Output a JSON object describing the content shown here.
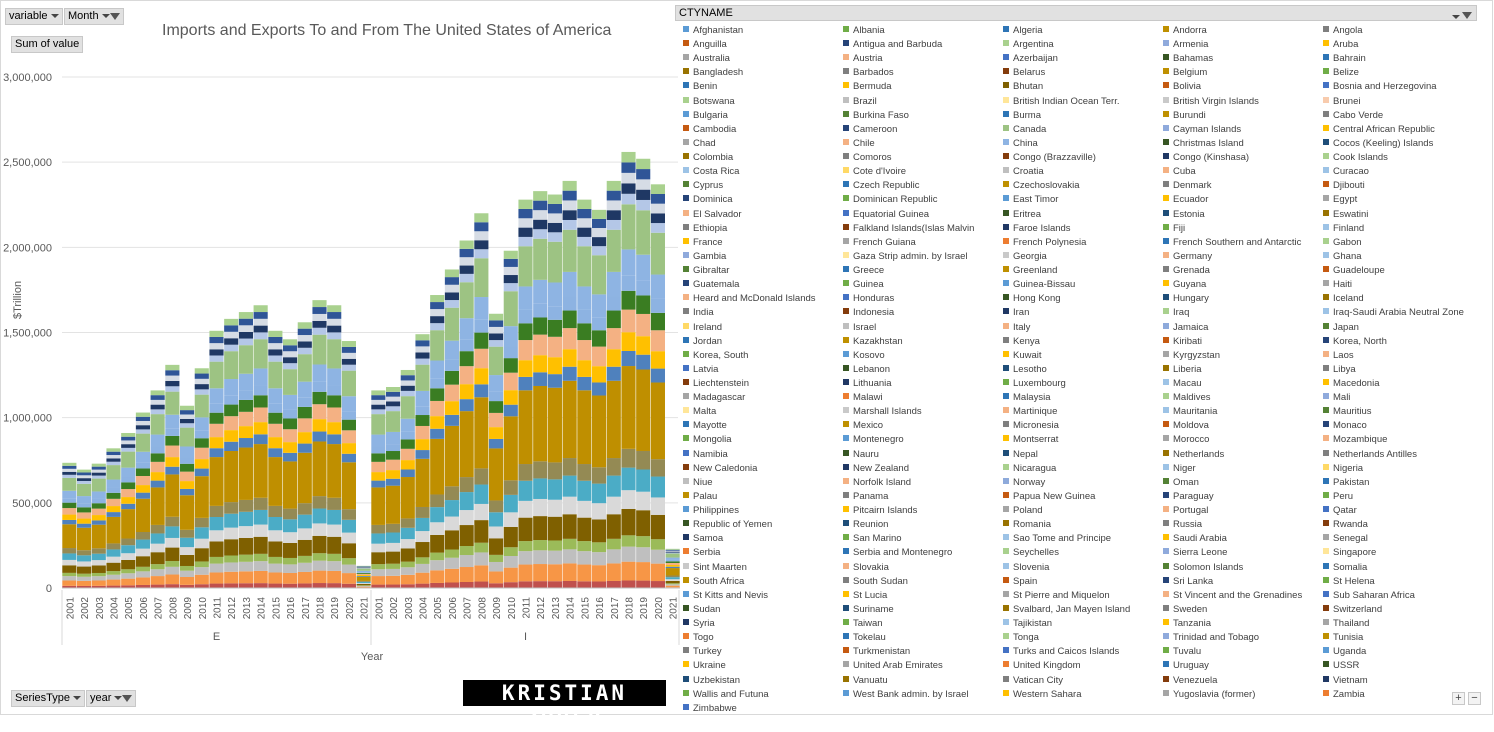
{
  "filters": {
    "variable_label": "variable",
    "month_label": "Month",
    "values_label": "Sum of value",
    "seriestype_label": "SeriesType",
    "year_label": "year"
  },
  "logo_text": "KRISTIAN ZUBER",
  "chart_data": {
    "type": "stacked-column",
    "title": "Imports and Exports To and From The United States of America",
    "ylabel": "$Trillion",
    "xlabel": "Year",
    "ylim": [
      0,
      3000000
    ],
    "yticks": [
      0,
      500000,
      1000000,
      1500000,
      2000000,
      2500000,
      3000000
    ],
    "ytick_labels": [
      "0",
      "500,000",
      "1,000,000",
      "1,500,000",
      "2,000,000",
      "2,500,000",
      "3,000,000"
    ],
    "legend_title": "CTYNAME",
    "groups": [
      {
        "name": "E",
        "categories": [
          "2001",
          "2002",
          "2003",
          "2004",
          "2005",
          "2006",
          "2007",
          "2008",
          "2009",
          "2010",
          "2011",
          "2012",
          "2013",
          "2014",
          "2015",
          "2016",
          "2017",
          "2018",
          "2019",
          "2020",
          "2021"
        ],
        "totals": [
          735000,
          695000,
          730000,
          820000,
          910000,
          1030000,
          1160000,
          1310000,
          1070000,
          1290000,
          1510000,
          1580000,
          1620000,
          1660000,
          1510000,
          1460000,
          1560000,
          1690000,
          1660000,
          1450000,
          130000
        ]
      },
      {
        "name": "I",
        "categories": [
          "2001",
          "2002",
          "2003",
          "2004",
          "2005",
          "2006",
          "2007",
          "2008",
          "2009",
          "2010",
          "2011",
          "2012",
          "2013",
          "2014",
          "2015",
          "2016",
          "2017",
          "2018",
          "2019",
          "2020",
          "2021"
        ],
        "totals": [
          1160000,
          1180000,
          1280000,
          1490000,
          1720000,
          1870000,
          2040000,
          2200000,
          1610000,
          1980000,
          2280000,
          2330000,
          2310000,
          2390000,
          2280000,
          2220000,
          2390000,
          2560000,
          2520000,
          2370000,
          230000
        ]
      }
    ],
    "segment_shares": [
      0.02,
      0.05,
      0.04,
      0.03,
      0.07,
      0.05,
      0.06,
      0.05,
      0.22,
      0.04,
      0.05,
      0.06,
      0.05,
      0.04,
      0.07,
      0.12
    ],
    "segment_colors": [
      "#c0504d",
      "#f79646",
      "#bfbfbf",
      "#9bbb59",
      "#7f6000",
      "#d9d9d9",
      "#4bacc6",
      "#948a54",
      "#bf8f00",
      "#4f81bd",
      "#ffc000",
      "#f4b183",
      "#3a7d22",
      "#8db3e2",
      "#8eb4e3",
      "#9dc383"
    ],
    "top_band_colors": [
      "#b4c7e7",
      "#1f3864",
      "#d6dce5",
      "#2f5597",
      "#a9d18e"
    ]
  },
  "legend": [
    {
      "name": "Afghanistan",
      "color": "#5b9bd5"
    },
    {
      "name": "Albania",
      "color": "#70ad47"
    },
    {
      "name": "Algeria",
      "color": "#2e75b6"
    },
    {
      "name": "Andorra",
      "color": "#bf9000"
    },
    {
      "name": "Angola",
      "color": "#7f7f7f"
    },
    {
      "name": "Anguilla",
      "color": "#c55a11"
    },
    {
      "name": "Antigua and Barbuda",
      "color": "#264478"
    },
    {
      "name": "Argentina",
      "color": "#a9d18e"
    },
    {
      "name": "Armenia",
      "color": "#8faadc"
    },
    {
      "name": "Aruba",
      "color": "#ffc000"
    },
    {
      "name": "Australia",
      "color": "#a5a5a5"
    },
    {
      "name": "Austria",
      "color": "#f4b183"
    },
    {
      "name": "Azerbaijan",
      "color": "#4472c4"
    },
    {
      "name": "Bahamas",
      "color": "#375623"
    },
    {
      "name": "Bahrain",
      "color": "#2e75b6"
    },
    {
      "name": "Bangladesh",
      "color": "#997300"
    },
    {
      "name": "Barbados",
      "color": "#7f7f7f"
    },
    {
      "name": "Belarus",
      "color": "#843c0c"
    },
    {
      "name": "Belgium",
      "color": "#bf9000"
    },
    {
      "name": "Belize",
      "color": "#70ad47"
    },
    {
      "name": "Benin",
      "color": "#2e75b6"
    },
    {
      "name": "Bermuda",
      "color": "#ffc000"
    },
    {
      "name": "Bhutan",
      "color": "#7f6000"
    },
    {
      "name": "Bolivia",
      "color": "#c55a11"
    },
    {
      "name": "Bosnia and Herzegovina",
      "color": "#4472c4"
    },
    {
      "name": "Botswana",
      "color": "#a9d18e"
    },
    {
      "name": "Brazil",
      "color": "#bfbfbf"
    },
    {
      "name": "British Indian Ocean Terr.",
      "color": "#ffe699"
    },
    {
      "name": "British Virgin Islands",
      "color": "#c9c9c9"
    },
    {
      "name": "Brunei",
      "color": "#f8cbad"
    },
    {
      "name": "Bulgaria",
      "color": "#5b9bd5"
    },
    {
      "name": "Burkina Faso",
      "color": "#548235"
    },
    {
      "name": "Burma",
      "color": "#2e75b6"
    },
    {
      "name": "Burundi",
      "color": "#bf9000"
    },
    {
      "name": "Cabo Verde",
      "color": "#7f7f7f"
    },
    {
      "name": "Cambodia",
      "color": "#c55a11"
    },
    {
      "name": "Cameroon",
      "color": "#264478"
    },
    {
      "name": "Canada",
      "color": "#9dc383"
    },
    {
      "name": "Cayman Islands",
      "color": "#8faadc"
    },
    {
      "name": "Central African Republic",
      "color": "#ffc000"
    },
    {
      "name": "Chad",
      "color": "#a5a5a5"
    },
    {
      "name": "Chile",
      "color": "#f4b183"
    },
    {
      "name": "China",
      "color": "#8eb4e3"
    },
    {
      "name": "Christmas Island",
      "color": "#375623"
    },
    {
      "name": "Cocos (Keeling) Islands",
      "color": "#1f4e79"
    },
    {
      "name": "Colombia",
      "color": "#997300"
    },
    {
      "name": "Comoros",
      "color": "#7f7f7f"
    },
    {
      "name": "Congo (Brazzaville)",
      "color": "#843c0c"
    },
    {
      "name": "Congo (Kinshasa)",
      "color": "#203864"
    },
    {
      "name": "Cook Islands",
      "color": "#a9d18e"
    },
    {
      "name": "Costa Rica",
      "color": "#9dc3e6"
    },
    {
      "name": "Cote d'Ivoire",
      "color": "#ffd966"
    },
    {
      "name": "Croatia",
      "color": "#bfbfbf"
    },
    {
      "name": "Cuba",
      "color": "#f4b183"
    },
    {
      "name": "Curacao",
      "color": "#9dc3e6"
    },
    {
      "name": "Cyprus",
      "color": "#548235"
    },
    {
      "name": "Czech Republic",
      "color": "#2e75b6"
    },
    {
      "name": "Czechoslovakia",
      "color": "#bf9000"
    },
    {
      "name": "Denmark",
      "color": "#7f7f7f"
    },
    {
      "name": "Djibouti",
      "color": "#c55a11"
    },
    {
      "name": "Dominica",
      "color": "#264478"
    },
    {
      "name": "Dominican Republic",
      "color": "#70ad47"
    },
    {
      "name": "East Timor",
      "color": "#5b9bd5"
    },
    {
      "name": "Ecuador",
      "color": "#ffc000"
    },
    {
      "name": "Egypt",
      "color": "#a5a5a5"
    },
    {
      "name": "El Salvador",
      "color": "#f4b183"
    },
    {
      "name": "Equatorial Guinea",
      "color": "#4472c4"
    },
    {
      "name": "Eritrea",
      "color": "#375623"
    },
    {
      "name": "Estonia",
      "color": "#1f4e79"
    },
    {
      "name": "Eswatini",
      "color": "#997300"
    },
    {
      "name": "Ethiopia",
      "color": "#7f7f7f"
    },
    {
      "name": "Falkland Islands(Islas Malvin",
      "color": "#843c0c"
    },
    {
      "name": "Faroe Islands",
      "color": "#203864"
    },
    {
      "name": "Fiji",
      "color": "#70ad47"
    },
    {
      "name": "Finland",
      "color": "#9dc3e6"
    },
    {
      "name": "France",
      "color": "#ffc000"
    },
    {
      "name": "French Guiana",
      "color": "#a5a5a5"
    },
    {
      "name": "French Polynesia",
      "color": "#ed7d31"
    },
    {
      "name": "French Southern and Antarctic",
      "color": "#2e75b6"
    },
    {
      "name": "Gabon",
      "color": "#a9d18e"
    },
    {
      "name": "Gambia",
      "color": "#8faadc"
    },
    {
      "name": "Gaza Strip admin. by Israel",
      "color": "#ffe699"
    },
    {
      "name": "Georgia",
      "color": "#c9c9c9"
    },
    {
      "name": "Germany",
      "color": "#f4b183"
    },
    {
      "name": "Ghana",
      "color": "#9dc3e6"
    },
    {
      "name": "Gibraltar",
      "color": "#548235"
    },
    {
      "name": "Greece",
      "color": "#2e75b6"
    },
    {
      "name": "Greenland",
      "color": "#bf9000"
    },
    {
      "name": "Grenada",
      "color": "#7f7f7f"
    },
    {
      "name": "Guadeloupe",
      "color": "#c55a11"
    },
    {
      "name": "Guatemala",
      "color": "#264478"
    },
    {
      "name": "Guinea",
      "color": "#70ad47"
    },
    {
      "name": "Guinea-Bissau",
      "color": "#5b9bd5"
    },
    {
      "name": "Guyana",
      "color": "#ffc000"
    },
    {
      "name": "Haiti",
      "color": "#a5a5a5"
    },
    {
      "name": "Heard and McDonald Islands",
      "color": "#f4b183"
    },
    {
      "name": "Honduras",
      "color": "#4472c4"
    },
    {
      "name": "Hong Kong",
      "color": "#375623"
    },
    {
      "name": "Hungary",
      "color": "#1f4e79"
    },
    {
      "name": "Iceland",
      "color": "#997300"
    },
    {
      "name": "India",
      "color": "#7f7f7f"
    },
    {
      "name": "Indonesia",
      "color": "#843c0c"
    },
    {
      "name": "Iran",
      "color": "#203864"
    },
    {
      "name": "Iraq",
      "color": "#a9d18e"
    },
    {
      "name": "Iraq-Saudi Arabia Neutral Zone",
      "color": "#9dc3e6"
    },
    {
      "name": "Ireland",
      "color": "#ffd966"
    },
    {
      "name": "Israel",
      "color": "#bfbfbf"
    },
    {
      "name": "Italy",
      "color": "#f4b183"
    },
    {
      "name": "Jamaica",
      "color": "#8eaadb"
    },
    {
      "name": "Japan",
      "color": "#548235"
    },
    {
      "name": "Jordan",
      "color": "#2e75b6"
    },
    {
      "name": "Kazakhstan",
      "color": "#bf9000"
    },
    {
      "name": "Kenya",
      "color": "#7f7f7f"
    },
    {
      "name": "Kiribati",
      "color": "#c55a11"
    },
    {
      "name": "Korea, North",
      "color": "#264478"
    },
    {
      "name": "Korea, South",
      "color": "#70ad47"
    },
    {
      "name": "Kosovo",
      "color": "#5b9bd5"
    },
    {
      "name": "Kuwait",
      "color": "#ffc000"
    },
    {
      "name": "Kyrgyzstan",
      "color": "#a5a5a5"
    },
    {
      "name": "Laos",
      "color": "#f4b183"
    },
    {
      "name": "Latvia",
      "color": "#4472c4"
    },
    {
      "name": "Lebanon",
      "color": "#375623"
    },
    {
      "name": "Lesotho",
      "color": "#1f4e79"
    },
    {
      "name": "Liberia",
      "color": "#997300"
    },
    {
      "name": "Libya",
      "color": "#7f7f7f"
    },
    {
      "name": "Liechtenstein",
      "color": "#843c0c"
    },
    {
      "name": "Lithuania",
      "color": "#203864"
    },
    {
      "name": "Luxembourg",
      "color": "#70ad47"
    },
    {
      "name": "Macau",
      "color": "#9dc3e6"
    },
    {
      "name": "Macedonia",
      "color": "#ffc000"
    },
    {
      "name": "Madagascar",
      "color": "#a5a5a5"
    },
    {
      "name": "Malawi",
      "color": "#ed7d31"
    },
    {
      "name": "Malaysia",
      "color": "#2e75b6"
    },
    {
      "name": "Maldives",
      "color": "#a9d18e"
    },
    {
      "name": "Mali",
      "color": "#8faadc"
    },
    {
      "name": "Malta",
      "color": "#ffe699"
    },
    {
      "name": "Marshall Islands",
      "color": "#c9c9c9"
    },
    {
      "name": "Martinique",
      "color": "#f4b183"
    },
    {
      "name": "Mauritania",
      "color": "#9dc3e6"
    },
    {
      "name": "Mauritius",
      "color": "#548235"
    },
    {
      "name": "Mayotte",
      "color": "#2e75b6"
    },
    {
      "name": "Mexico",
      "color": "#bf9000"
    },
    {
      "name": "Micronesia",
      "color": "#7f7f7f"
    },
    {
      "name": "Moldova",
      "color": "#c55a11"
    },
    {
      "name": "Monaco",
      "color": "#264478"
    },
    {
      "name": "Mongolia",
      "color": "#70ad47"
    },
    {
      "name": "Montenegro",
      "color": "#5b9bd5"
    },
    {
      "name": "Montserrat",
      "color": "#ffc000"
    },
    {
      "name": "Morocco",
      "color": "#a5a5a5"
    },
    {
      "name": "Mozambique",
      "color": "#f4b183"
    },
    {
      "name": "Namibia",
      "color": "#4472c4"
    },
    {
      "name": "Nauru",
      "color": "#375623"
    },
    {
      "name": "Nepal",
      "color": "#1f4e79"
    },
    {
      "name": "Netherlands",
      "color": "#997300"
    },
    {
      "name": "Netherlands Antilles",
      "color": "#7f7f7f"
    },
    {
      "name": "New Caledonia",
      "color": "#843c0c"
    },
    {
      "name": "New Zealand",
      "color": "#203864"
    },
    {
      "name": "Nicaragua",
      "color": "#a9d18e"
    },
    {
      "name": "Niger",
      "color": "#9dc3e6"
    },
    {
      "name": "Nigeria",
      "color": "#ffd966"
    },
    {
      "name": "Niue",
      "color": "#bfbfbf"
    },
    {
      "name": "Norfolk Island",
      "color": "#f4b183"
    },
    {
      "name": "Norway",
      "color": "#8eaadb"
    },
    {
      "name": "Oman",
      "color": "#548235"
    },
    {
      "name": "Pakistan",
      "color": "#2e75b6"
    },
    {
      "name": "Palau",
      "color": "#bf9000"
    },
    {
      "name": "Panama",
      "color": "#7f7f7f"
    },
    {
      "name": "Papua New Guinea",
      "color": "#c55a11"
    },
    {
      "name": "Paraguay",
      "color": "#264478"
    },
    {
      "name": "Peru",
      "color": "#70ad47"
    },
    {
      "name": "Philippines",
      "color": "#5b9bd5"
    },
    {
      "name": "Pitcairn Islands",
      "color": "#ffc000"
    },
    {
      "name": "Poland",
      "color": "#a5a5a5"
    },
    {
      "name": "Portugal",
      "color": "#f4b183"
    },
    {
      "name": "Qatar",
      "color": "#4472c4"
    },
    {
      "name": "Republic of Yemen",
      "color": "#375623"
    },
    {
      "name": "Reunion",
      "color": "#1f4e79"
    },
    {
      "name": "Romania",
      "color": "#997300"
    },
    {
      "name": "Russia",
      "color": "#7f7f7f"
    },
    {
      "name": "Rwanda",
      "color": "#843c0c"
    },
    {
      "name": "Samoa",
      "color": "#203864"
    },
    {
      "name": "San Marino",
      "color": "#70ad47"
    },
    {
      "name": "Sao Tome and Principe",
      "color": "#9dc3e6"
    },
    {
      "name": "Saudi Arabia",
      "color": "#ffc000"
    },
    {
      "name": "Senegal",
      "color": "#a5a5a5"
    },
    {
      "name": "Serbia",
      "color": "#ed7d31"
    },
    {
      "name": "Serbia and Montenegro",
      "color": "#2e75b6"
    },
    {
      "name": "Seychelles",
      "color": "#a9d18e"
    },
    {
      "name": "Sierra Leone",
      "color": "#8faadc"
    },
    {
      "name": "Singapore",
      "color": "#ffe699"
    },
    {
      "name": "Sint Maarten",
      "color": "#c9c9c9"
    },
    {
      "name": "Slovakia",
      "color": "#f4b183"
    },
    {
      "name": "Slovenia",
      "color": "#9dc3e6"
    },
    {
      "name": "Solomon Islands",
      "color": "#548235"
    },
    {
      "name": "Somalia",
      "color": "#2e75b6"
    },
    {
      "name": "South Africa",
      "color": "#bf9000"
    },
    {
      "name": "South Sudan",
      "color": "#7f7f7f"
    },
    {
      "name": "Spain",
      "color": "#c55a11"
    },
    {
      "name": "Sri Lanka",
      "color": "#264478"
    },
    {
      "name": "St Helena",
      "color": "#70ad47"
    },
    {
      "name": "St Kitts and Nevis",
      "color": "#5b9bd5"
    },
    {
      "name": "St Lucia",
      "color": "#ffc000"
    },
    {
      "name": "St Pierre and Miquelon",
      "color": "#a5a5a5"
    },
    {
      "name": "St Vincent and the Grenadines",
      "color": "#f4b183"
    },
    {
      "name": "Sub Saharan Africa",
      "color": "#4472c4"
    },
    {
      "name": "Sudan",
      "color": "#375623"
    },
    {
      "name": "Suriname",
      "color": "#1f4e79"
    },
    {
      "name": "Svalbard, Jan Mayen Island",
      "color": "#997300"
    },
    {
      "name": "Sweden",
      "color": "#7f7f7f"
    },
    {
      "name": "Switzerland",
      "color": "#843c0c"
    },
    {
      "name": "Syria",
      "color": "#203864"
    },
    {
      "name": "Taiwan",
      "color": "#70ad47"
    },
    {
      "name": "Tajikistan",
      "color": "#9dc3e6"
    },
    {
      "name": "Tanzania",
      "color": "#ffc000"
    },
    {
      "name": "Thailand",
      "color": "#a5a5a5"
    },
    {
      "name": "Togo",
      "color": "#ed7d31"
    },
    {
      "name": "Tokelau",
      "color": "#2e75b6"
    },
    {
      "name": "Tonga",
      "color": "#a9d18e"
    },
    {
      "name": "Trinidad and Tobago",
      "color": "#8faadc"
    },
    {
      "name": "Tunisia",
      "color": "#bf9000"
    },
    {
      "name": "Turkey",
      "color": "#7f7f7f"
    },
    {
      "name": "Turkmenistan",
      "color": "#c55a11"
    },
    {
      "name": "Turks and Caicos Islands",
      "color": "#4472c4"
    },
    {
      "name": "Tuvalu",
      "color": "#70ad47"
    },
    {
      "name": "Uganda",
      "color": "#5b9bd5"
    },
    {
      "name": "Ukraine",
      "color": "#ffc000"
    },
    {
      "name": "United Arab Emirates",
      "color": "#a5a5a5"
    },
    {
      "name": "United Kingdom",
      "color": "#ed7d31"
    },
    {
      "name": "Uruguay",
      "color": "#2e75b6"
    },
    {
      "name": "USSR",
      "color": "#375623"
    },
    {
      "name": "Uzbekistan",
      "color": "#1f4e79"
    },
    {
      "name": "Vanuatu",
      "color": "#997300"
    },
    {
      "name": "Vatican City",
      "color": "#7f7f7f"
    },
    {
      "name": "Venezuela",
      "color": "#843c0c"
    },
    {
      "name": "Vietnam",
      "color": "#203864"
    },
    {
      "name": "Wallis and Futuna",
      "color": "#70ad47"
    },
    {
      "name": "West Bank admin. by Israel",
      "color": "#5b9bd5"
    },
    {
      "name": "Western Sahara",
      "color": "#ffc000"
    },
    {
      "name": "Yugoslavia (former)",
      "color": "#a5a5a5"
    },
    {
      "name": "Zambia",
      "color": "#ed7d31"
    },
    {
      "name": "Zimbabwe",
      "color": "#4472c4"
    }
  ]
}
